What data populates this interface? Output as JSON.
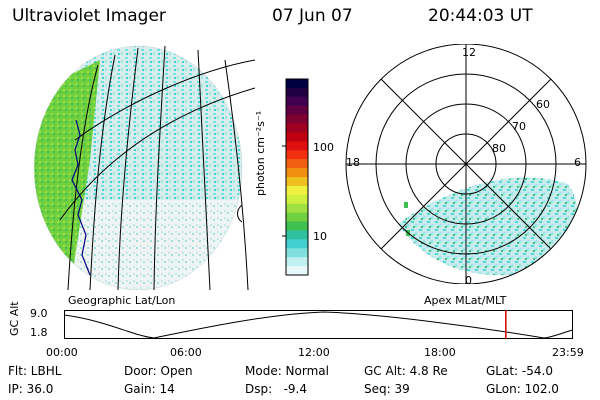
{
  "header": {
    "instrument": "Ultraviolet Imager",
    "date": "07 Jun 07",
    "time": "20:44:03 UT"
  },
  "left_panel": {
    "caption": "Geographic Lat/Lon"
  },
  "right_panel": {
    "caption": "Apex MLat/MLT",
    "mlt_labels": {
      "top": "12",
      "left": "18",
      "right": "6",
      "bottom": "0"
    },
    "lat_labels": [
      "60",
      "70",
      "80"
    ]
  },
  "colorbar": {
    "label": "photon cm⁻²s⁻¹",
    "tick_high": "100",
    "tick_low": "10",
    "colors": [
      "#000040",
      "#200040",
      "#400050",
      "#600040",
      "#800030",
      "#a00020",
      "#c00010",
      "#e01010",
      "#f03010",
      "#f06010",
      "#f09010",
      "#f0c020",
      "#f0f040",
      "#d0f040",
      "#a0e040",
      "#70d040",
      "#40c050",
      "#30c0a0",
      "#40d0d0",
      "#80e0e0",
      "#c0f0f0",
      "#e8f8f8"
    ]
  },
  "timeline": {
    "axis_label": "GC Alt",
    "y_top": "9.0",
    "y_bottom": "1.8",
    "time_ticks": [
      "00:00",
      "06:00",
      "12:00",
      "18:00",
      "23:59"
    ],
    "current_time_fraction": 0.868,
    "marker_color": "#d00000"
  },
  "status": {
    "flt": "Flt: LBHL",
    "ip": "IP: 36.0",
    "door": "Door: Open",
    "gain": "Gain: 14",
    "mode": "Mode: Normal",
    "dsp": "Dsp:   -9.4",
    "gc_alt": "GC Alt: 4.8 Re",
    "seq": "Seq: 39",
    "glat": "GLat: -54.0",
    "glon": "GLon: 102.0"
  }
}
